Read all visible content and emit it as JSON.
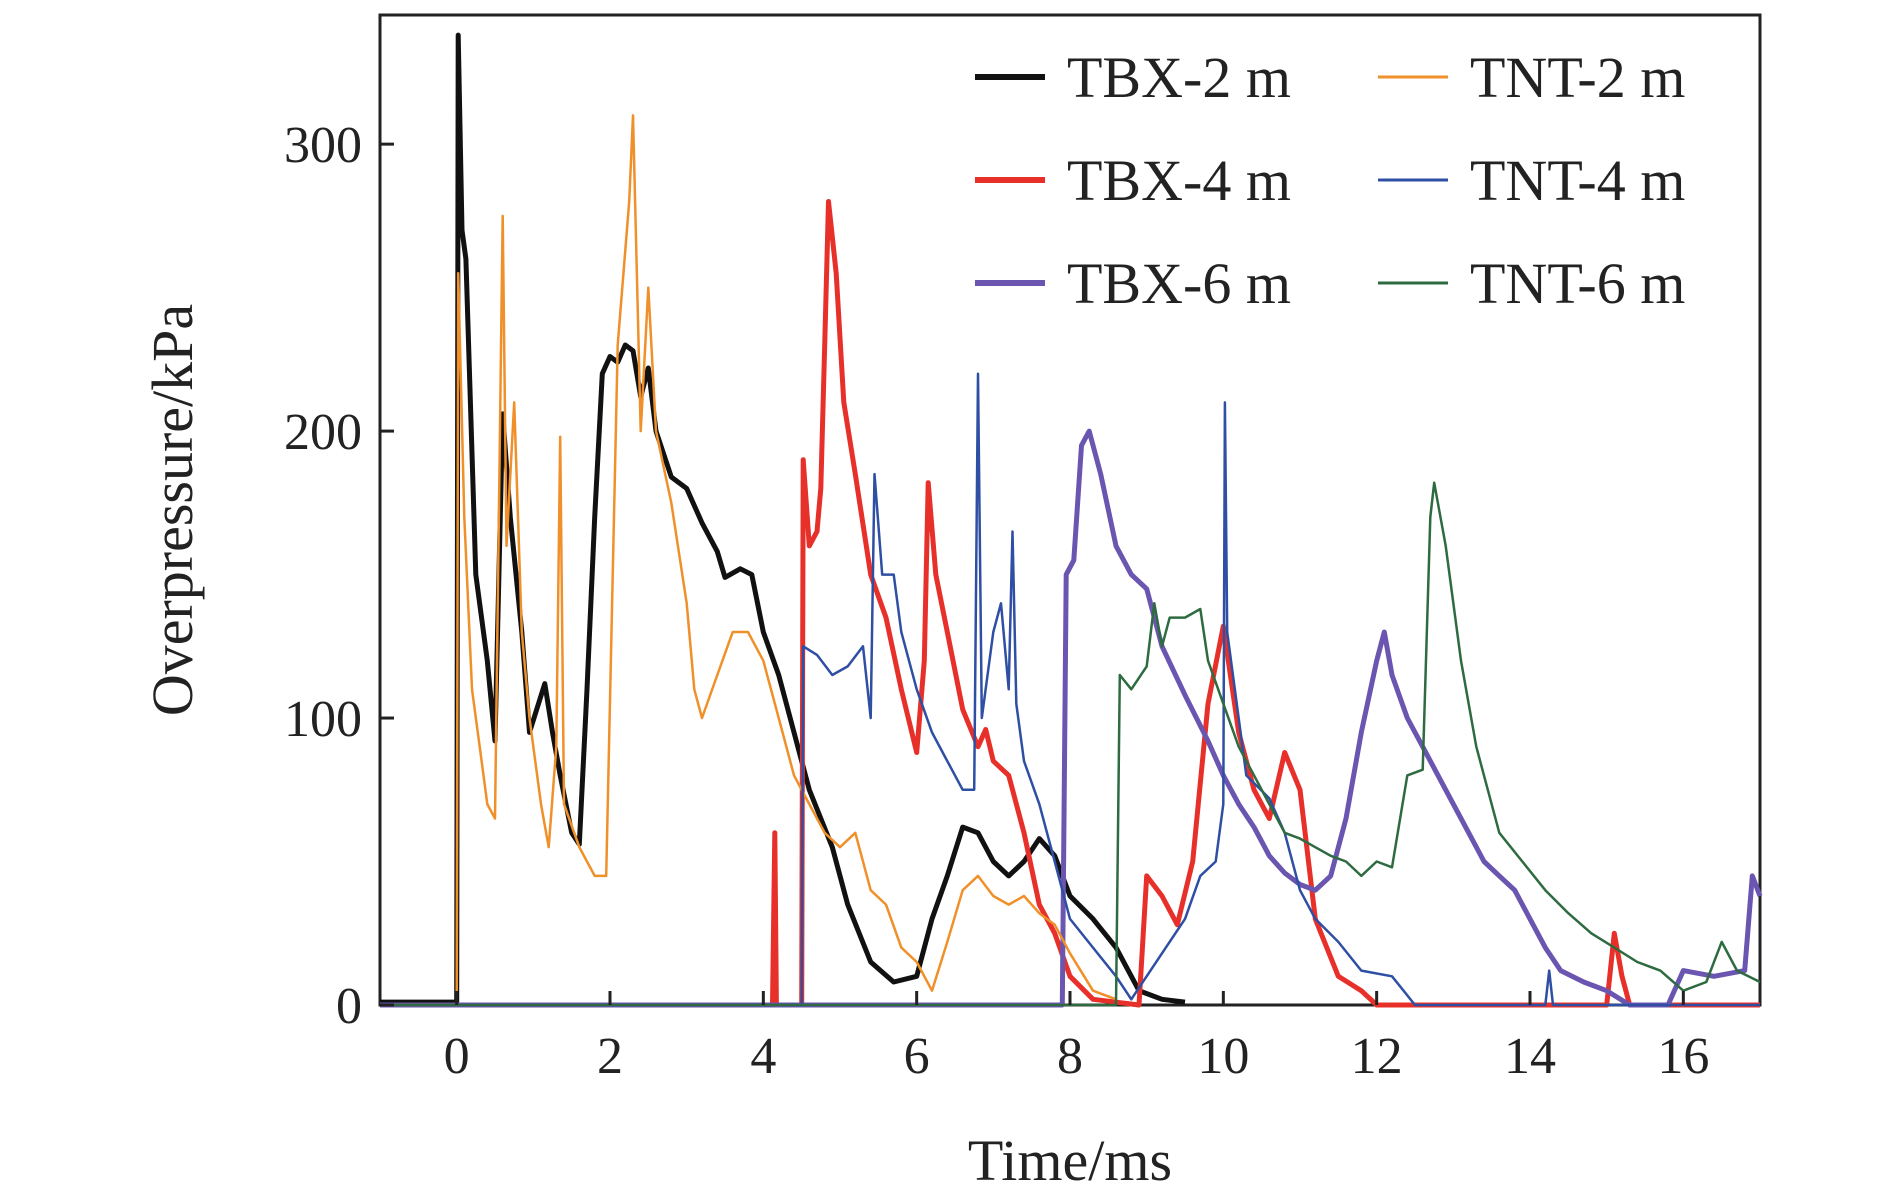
{
  "chart_data": {
    "type": "line",
    "title": "",
    "xlabel": "Time/ms",
    "ylabel": "Overpressure/kPa",
    "xlim": [
      -1,
      17
    ],
    "ylim": [
      0,
      345
    ],
    "xticks": [
      0,
      2,
      4,
      6,
      8,
      10,
      12,
      14,
      16
    ],
    "yticks": [
      0,
      100,
      200,
      300
    ],
    "grid": false,
    "legend_position": "top-right",
    "series": [
      {
        "name": "TBX-2 m",
        "color": "#111111",
        "points": [
          [
            -1,
            1
          ],
          [
            -0.1,
            1
          ],
          [
            0,
            1
          ],
          [
            0.02,
            338
          ],
          [
            0.07,
            270
          ],
          [
            0.12,
            260
          ],
          [
            0.25,
            150
          ],
          [
            0.4,
            120
          ],
          [
            0.5,
            92
          ],
          [
            0.6,
            206
          ],
          [
            0.7,
            170
          ],
          [
            0.85,
            130
          ],
          [
            0.95,
            95
          ],
          [
            1.15,
            112
          ],
          [
            1.25,
            95
          ],
          [
            1.35,
            80
          ],
          [
            1.5,
            60
          ],
          [
            1.6,
            56
          ],
          [
            1.7,
            110
          ],
          [
            1.8,
            170
          ],
          [
            1.9,
            220
          ],
          [
            2.0,
            226
          ],
          [
            2.1,
            224
          ],
          [
            2.2,
            230
          ],
          [
            2.3,
            228
          ],
          [
            2.4,
            212
          ],
          [
            2.5,
            222
          ],
          [
            2.6,
            200
          ],
          [
            2.8,
            184
          ],
          [
            3.0,
            180
          ],
          [
            3.2,
            168
          ],
          [
            3.4,
            158
          ],
          [
            3.5,
            149
          ],
          [
            3.7,
            152
          ],
          [
            3.85,
            150
          ],
          [
            4.0,
            130
          ],
          [
            4.2,
            115
          ],
          [
            4.4,
            95
          ],
          [
            4.6,
            75
          ],
          [
            4.9,
            55
          ],
          [
            5.1,
            35
          ],
          [
            5.4,
            15
          ],
          [
            5.7,
            8
          ],
          [
            6.0,
            10
          ],
          [
            6.2,
            30
          ],
          [
            6.4,
            45
          ],
          [
            6.6,
            62
          ],
          [
            6.8,
            60
          ],
          [
            7.0,
            50
          ],
          [
            7.2,
            45
          ],
          [
            7.4,
            50
          ],
          [
            7.6,
            58
          ],
          [
            7.8,
            52
          ],
          [
            8.0,
            38
          ],
          [
            8.3,
            30
          ],
          [
            8.6,
            20
          ],
          [
            8.9,
            5
          ],
          [
            9.2,
            2
          ],
          [
            9.5,
            1
          ]
        ]
      },
      {
        "name": "TBX-4 m",
        "color": "#e8302a",
        "points": [
          [
            -1,
            0
          ],
          [
            4.12,
            0
          ],
          [
            4.15,
            60
          ],
          [
            4.17,
            0
          ],
          [
            4.5,
            0
          ],
          [
            4.52,
            190
          ],
          [
            4.6,
            160
          ],
          [
            4.7,
            165
          ],
          [
            4.75,
            180
          ],
          [
            4.8,
            230
          ],
          [
            4.85,
            280
          ],
          [
            4.95,
            255
          ],
          [
            5.05,
            210
          ],
          [
            5.2,
            185
          ],
          [
            5.4,
            150
          ],
          [
            5.6,
            135
          ],
          [
            5.8,
            110
          ],
          [
            6.0,
            88
          ],
          [
            6.1,
            120
          ],
          [
            6.15,
            182
          ],
          [
            6.25,
            150
          ],
          [
            6.4,
            130
          ],
          [
            6.6,
            103
          ],
          [
            6.8,
            90
          ],
          [
            6.9,
            96
          ],
          [
            7.0,
            85
          ],
          [
            7.2,
            80
          ],
          [
            7.4,
            60
          ],
          [
            7.6,
            35
          ],
          [
            7.8,
            25
          ],
          [
            8.0,
            10
          ],
          [
            8.3,
            2
          ],
          [
            8.9,
            0
          ],
          [
            9.0,
            45
          ],
          [
            9.2,
            38
          ],
          [
            9.4,
            28
          ],
          [
            9.6,
            50
          ],
          [
            9.8,
            105
          ],
          [
            10.0,
            132
          ],
          [
            10.2,
            95
          ],
          [
            10.4,
            75
          ],
          [
            10.6,
            65
          ],
          [
            10.8,
            88
          ],
          [
            11.0,
            75
          ],
          [
            11.2,
            30
          ],
          [
            11.5,
            10
          ],
          [
            11.8,
            5
          ],
          [
            12.0,
            0
          ],
          [
            12.3,
            0
          ],
          [
            15.0,
            0
          ],
          [
            15.1,
            25
          ],
          [
            15.2,
            10
          ],
          [
            15.3,
            0
          ],
          [
            17,
            0
          ]
        ]
      },
      {
        "name": "TBX-6 m",
        "color": "#6a55b0",
        "points": [
          [
            -1,
            0
          ],
          [
            7.9,
            0
          ],
          [
            7.95,
            150
          ],
          [
            8.05,
            155
          ],
          [
            8.15,
            195
          ],
          [
            8.25,
            200
          ],
          [
            8.4,
            185
          ],
          [
            8.6,
            160
          ],
          [
            8.8,
            150
          ],
          [
            9.0,
            145
          ],
          [
            9.2,
            125
          ],
          [
            9.5,
            108
          ],
          [
            9.8,
            92
          ],
          [
            10.0,
            80
          ],
          [
            10.2,
            70
          ],
          [
            10.4,
            62
          ],
          [
            10.6,
            52
          ],
          [
            10.8,
            46
          ],
          [
            11.0,
            42
          ],
          [
            11.2,
            40
          ],
          [
            11.4,
            45
          ],
          [
            11.6,
            65
          ],
          [
            11.8,
            95
          ],
          [
            12.0,
            120
          ],
          [
            12.1,
            130
          ],
          [
            12.2,
            115
          ],
          [
            12.4,
            100
          ],
          [
            12.6,
            90
          ],
          [
            12.8,
            80
          ],
          [
            13.0,
            70
          ],
          [
            13.2,
            60
          ],
          [
            13.4,
            50
          ],
          [
            13.6,
            45
          ],
          [
            13.8,
            40
          ],
          [
            14.0,
            30
          ],
          [
            14.2,
            20
          ],
          [
            14.4,
            12
          ],
          [
            14.7,
            8
          ],
          [
            15.0,
            5
          ],
          [
            15.3,
            0
          ],
          [
            15.8,
            0
          ],
          [
            16.0,
            12
          ],
          [
            16.4,
            10
          ],
          [
            16.8,
            12
          ],
          [
            16.9,
            45
          ],
          [
            17.0,
            38
          ]
        ]
      },
      {
        "name": "TNT-2 m",
        "color": "#f0902a",
        "points": [
          [
            -1,
            0
          ],
          [
            0,
            0
          ],
          [
            0.02,
            255
          ],
          [
            0.1,
            170
          ],
          [
            0.2,
            110
          ],
          [
            0.3,
            90
          ],
          [
            0.4,
            70
          ],
          [
            0.5,
            65
          ],
          [
            0.6,
            275
          ],
          [
            0.65,
            160
          ],
          [
            0.75,
            210
          ],
          [
            0.85,
            130
          ],
          [
            0.95,
            100
          ],
          [
            1.1,
            70
          ],
          [
            1.2,
            55
          ],
          [
            1.3,
            90
          ],
          [
            1.35,
            198
          ],
          [
            1.4,
            70
          ],
          [
            1.6,
            55
          ],
          [
            1.8,
            45
          ],
          [
            1.95,
            45
          ],
          [
            2.1,
            230
          ],
          [
            2.25,
            280
          ],
          [
            2.3,
            310
          ],
          [
            2.4,
            200
          ],
          [
            2.5,
            250
          ],
          [
            2.6,
            200
          ],
          [
            2.8,
            175
          ],
          [
            3.0,
            140
          ],
          [
            3.1,
            110
          ],
          [
            3.2,
            100
          ],
          [
            3.4,
            115
          ],
          [
            3.6,
            130
          ],
          [
            3.8,
            130
          ],
          [
            4.0,
            120
          ],
          [
            4.2,
            100
          ],
          [
            4.4,
            80
          ],
          [
            4.6,
            70
          ],
          [
            4.8,
            60
          ],
          [
            5.0,
            55
          ],
          [
            5.2,
            60
          ],
          [
            5.4,
            40
          ],
          [
            5.6,
            35
          ],
          [
            5.8,
            20
          ],
          [
            6.0,
            15
          ],
          [
            6.2,
            5
          ],
          [
            6.4,
            22
          ],
          [
            6.6,
            40
          ],
          [
            6.8,
            45
          ],
          [
            7.0,
            38
          ],
          [
            7.2,
            35
          ],
          [
            7.4,
            38
          ],
          [
            7.6,
            32
          ],
          [
            7.8,
            28
          ],
          [
            8.0,
            18
          ],
          [
            8.3,
            5
          ],
          [
            8.6,
            2
          ]
        ]
      },
      {
        "name": "TNT-4 m",
        "color": "#2e4fa3",
        "points": [
          [
            -1,
            0
          ],
          [
            4.5,
            0
          ],
          [
            4.52,
            125
          ],
          [
            4.7,
            122
          ],
          [
            4.9,
            115
          ],
          [
            5.1,
            118
          ],
          [
            5.3,
            125
          ],
          [
            5.4,
            100
          ],
          [
            5.45,
            185
          ],
          [
            5.55,
            150
          ],
          [
            5.7,
            150
          ],
          [
            5.8,
            130
          ],
          [
            6.0,
            110
          ],
          [
            6.2,
            95
          ],
          [
            6.4,
            85
          ],
          [
            6.6,
            75
          ],
          [
            6.75,
            75
          ],
          [
            6.8,
            220
          ],
          [
            6.85,
            100
          ],
          [
            7.0,
            130
          ],
          [
            7.1,
            140
          ],
          [
            7.2,
            110
          ],
          [
            7.25,
            165
          ],
          [
            7.3,
            105
          ],
          [
            7.4,
            85
          ],
          [
            7.6,
            70
          ],
          [
            7.8,
            50
          ],
          [
            8.0,
            30
          ],
          [
            8.3,
            20
          ],
          [
            8.6,
            10
          ],
          [
            8.8,
            2
          ],
          [
            9.2,
            18
          ],
          [
            9.5,
            30
          ],
          [
            9.7,
            45
          ],
          [
            9.9,
            50
          ],
          [
            10.0,
            70
          ],
          [
            10.02,
            210
          ],
          [
            10.05,
            130
          ],
          [
            10.3,
            80
          ],
          [
            10.6,
            72
          ],
          [
            10.8,
            60
          ],
          [
            11.0,
            40
          ],
          [
            11.2,
            30
          ],
          [
            11.5,
            22
          ],
          [
            11.8,
            12
          ],
          [
            12.2,
            10
          ],
          [
            12.5,
            0
          ],
          [
            14.2,
            0
          ],
          [
            14.25,
            12
          ],
          [
            14.3,
            0
          ],
          [
            17,
            0
          ]
        ]
      },
      {
        "name": "TNT-6 m",
        "color": "#2e6b40",
        "points": [
          [
            -1,
            0
          ],
          [
            8.6,
            0
          ],
          [
            8.65,
            115
          ],
          [
            8.8,
            110
          ],
          [
            9.0,
            118
          ],
          [
            9.1,
            140
          ],
          [
            9.2,
            125
          ],
          [
            9.3,
            135
          ],
          [
            9.5,
            135
          ],
          [
            9.7,
            138
          ],
          [
            9.8,
            120
          ],
          [
            10.0,
            105
          ],
          [
            10.2,
            90
          ],
          [
            10.4,
            80
          ],
          [
            10.6,
            70
          ],
          [
            10.8,
            60
          ],
          [
            11.0,
            58
          ],
          [
            11.2,
            55
          ],
          [
            11.4,
            52
          ],
          [
            11.6,
            50
          ],
          [
            11.8,
            45
          ],
          [
            12.0,
            50
          ],
          [
            12.2,
            48
          ],
          [
            12.4,
            80
          ],
          [
            12.6,
            82
          ],
          [
            12.7,
            170
          ],
          [
            12.75,
            182
          ],
          [
            12.9,
            160
          ],
          [
            13.1,
            120
          ],
          [
            13.3,
            90
          ],
          [
            13.6,
            60
          ],
          [
            13.9,
            50
          ],
          [
            14.2,
            40
          ],
          [
            14.5,
            32
          ],
          [
            14.8,
            25
          ],
          [
            15.1,
            20
          ],
          [
            15.4,
            15
          ],
          [
            15.7,
            12
          ],
          [
            16.0,
            5
          ],
          [
            16.3,
            8
          ],
          [
            16.5,
            22
          ],
          [
            16.7,
            12
          ],
          [
            17.0,
            8
          ]
        ]
      }
    ]
  }
}
